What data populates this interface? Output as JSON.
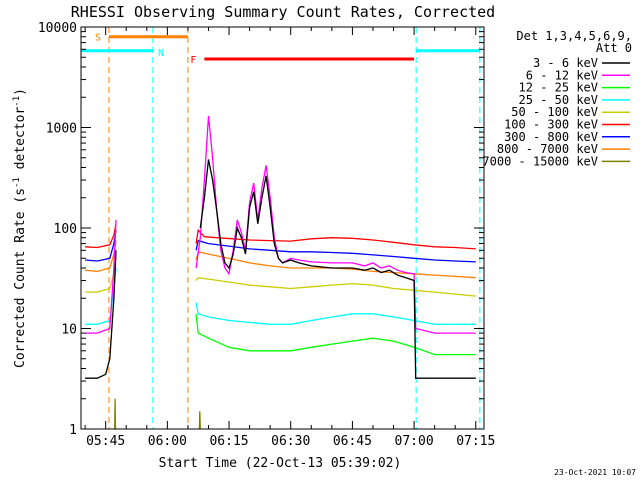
{
  "chart_data": {
    "type": "line",
    "title": "RHESSI Observing Summary Count Rates, Corrected",
    "xlabel": "Start Time (22-Oct-13 05:39:02)",
    "ylabel_main": "Corrected Count Rate (s",
    "ylabel_sup1": "-1",
    "ylabel_mid": " detector",
    "ylabel_sup2": "-1",
    "ylabel_end": ")",
    "yscale": "log",
    "ylim": [
      1,
      10000
    ],
    "xlim_minutes": [
      39.0,
      137.0
    ],
    "x_unit": "minutes after 05:00 UT",
    "x_ticks": [
      {
        "t": 45,
        "label": "05:45"
      },
      {
        "t": 60,
        "label": "06:00"
      },
      {
        "t": 75,
        "label": "06:15"
      },
      {
        "t": 90,
        "label": "06:30"
      },
      {
        "t": 105,
        "label": "06:45"
      },
      {
        "t": 120,
        "label": "07:00"
      },
      {
        "t": 135,
        "label": "07:15"
      }
    ],
    "y_ticks": [
      {
        "v": 1,
        "label": "1"
      },
      {
        "v": 10,
        "label": "10"
      },
      {
        "v": 100,
        "label": "100"
      },
      {
        "v": 1000,
        "label": "1000"
      },
      {
        "v": 10000,
        "label": "10000"
      }
    ],
    "legend": {
      "placement": "right",
      "header1": "Det 1,3,4,5,6,9,",
      "header2": "Att 0",
      "entries": [
        {
          "label": "3 - 6 keV",
          "color": "#000000"
        },
        {
          "label": "6 - 12 keV",
          "color": "#ff00ff"
        },
        {
          "label": "12 - 25 keV",
          "color": "#00ff00"
        },
        {
          "label": "25 - 50 keV",
          "color": "#00ffff"
        },
        {
          "label": "50 - 100 keV",
          "color": "#cccc00"
        },
        {
          "label": "100 - 300 keV",
          "color": "#ff0000"
        },
        {
          "label": "300 - 800 keV",
          "color": "#0000ff"
        },
        {
          "label": "800 - 7000 keV",
          "color": "#ff8000"
        },
        {
          "label": "7000 - 15000 keV",
          "color": "#808000"
        }
      ]
    },
    "flags": [
      {
        "label": "S",
        "color": "#ff8000",
        "start": 45.8,
        "end": 65.0,
        "y": 8000
      },
      {
        "label": "N",
        "color": "#00ffff",
        "start": 39.0,
        "end": 56.5,
        "y": 5800
      },
      {
        "label": "N",
        "color": "#00ffff",
        "start": 120.5,
        "end": 136.0,
        "y": 5800
      },
      {
        "label": "F",
        "color": "#ff0000",
        "start": 69.0,
        "end": 120.0,
        "y": 4800
      }
    ],
    "segment_lines": [
      {
        "t": 39.0,
        "color": "#00ffff"
      },
      {
        "t": 56.5,
        "color": "#00ffff"
      },
      {
        "t": 45.8,
        "color": "#ff8000"
      },
      {
        "t": 65.0,
        "color": "#ff8000"
      },
      {
        "t": 120.5,
        "color": "#00ffff"
      },
      {
        "t": 136.0,
        "color": "#00ffff"
      }
    ],
    "series": [
      {
        "name": "100 - 300 keV",
        "color": "#ff0000",
        "data": [
          [
            40,
            65
          ],
          [
            43,
            64
          ],
          [
            46,
            68
          ],
          [
            47,
            85
          ],
          [
            47.5,
            110
          ],
          [
            67,
            70
          ],
          [
            67.5,
            95
          ],
          [
            69,
            82
          ],
          [
            72,
            80
          ],
          [
            76,
            78
          ],
          [
            80,
            76
          ],
          [
            85,
            75
          ],
          [
            90,
            74
          ],
          [
            95,
            78
          ],
          [
            100,
            80
          ],
          [
            105,
            79
          ],
          [
            110,
            76
          ],
          [
            115,
            72
          ],
          [
            120,
            68
          ],
          [
            125,
            65
          ],
          [
            130,
            64
          ],
          [
            135,
            62
          ]
        ]
      },
      {
        "name": "300 - 800 keV",
        "color": "#0000ff",
        "data": [
          [
            40,
            48
          ],
          [
            43,
            47
          ],
          [
            46,
            50
          ],
          [
            47,
            70
          ],
          [
            47.5,
            95
          ],
          [
            67,
            60
          ],
          [
            67.5,
            75
          ],
          [
            70,
            70
          ],
          [
            75,
            66
          ],
          [
            80,
            62
          ],
          [
            85,
            60
          ],
          [
            90,
            58
          ],
          [
            95,
            58
          ],
          [
            100,
            57
          ],
          [
            105,
            56
          ],
          [
            110,
            54
          ],
          [
            115,
            52
          ],
          [
            120,
            50
          ],
          [
            125,
            48
          ],
          [
            130,
            47
          ],
          [
            135,
            46
          ]
        ]
      },
      {
        "name": "800 - 7000 keV",
        "color": "#ff8000",
        "data": [
          [
            40,
            38
          ],
          [
            43,
            37
          ],
          [
            46,
            40
          ],
          [
            47,
            55
          ],
          [
            47.5,
            75
          ],
          [
            67,
            48
          ],
          [
            67.5,
            58
          ],
          [
            70,
            55
          ],
          [
            75,
            50
          ],
          [
            80,
            45
          ],
          [
            85,
            42
          ],
          [
            90,
            40
          ],
          [
            95,
            40
          ],
          [
            100,
            40
          ],
          [
            105,
            39
          ],
          [
            110,
            37
          ],
          [
            115,
            36
          ],
          [
            120,
            35
          ],
          [
            125,
            34
          ],
          [
            130,
            33
          ],
          [
            135,
            32
          ]
        ]
      },
      {
        "name": "50 - 100 keV",
        "color": "#cccc00",
        "data": [
          [
            40,
            23
          ],
          [
            43,
            23
          ],
          [
            46,
            25
          ],
          [
            47,
            35
          ],
          [
            47.5,
            50
          ],
          [
            67,
            30
          ],
          [
            67.5,
            32
          ],
          [
            70,
            31
          ],
          [
            75,
            29
          ],
          [
            80,
            27
          ],
          [
            85,
            26
          ],
          [
            90,
            25
          ],
          [
            95,
            26
          ],
          [
            100,
            27
          ],
          [
            105,
            28
          ],
          [
            110,
            27
          ],
          [
            115,
            25
          ],
          [
            120,
            24
          ],
          [
            125,
            23
          ],
          [
            130,
            22
          ],
          [
            135,
            21
          ]
        ]
      },
      {
        "name": "25 - 50 keV",
        "color": "#00ffff",
        "data": [
          [
            40,
            11
          ],
          [
            43,
            11
          ],
          [
            46,
            12
          ],
          [
            47,
            25
          ],
          [
            47.5,
            40
          ],
          [
            67,
            18
          ],
          [
            67.5,
            14
          ],
          [
            70,
            13
          ],
          [
            75,
            12
          ],
          [
            80,
            11.5
          ],
          [
            85,
            11
          ],
          [
            90,
            11
          ],
          [
            95,
            12
          ],
          [
            100,
            13
          ],
          [
            105,
            14
          ],
          [
            110,
            14
          ],
          [
            115,
            13
          ],
          [
            120,
            12
          ],
          [
            125,
            11
          ],
          [
            130,
            11
          ],
          [
            135,
            11
          ]
        ]
      },
      {
        "name": "12 - 25 keV",
        "color": "#00ff00",
        "data": [
          [
            67,
            14
          ],
          [
            67.5,
            9
          ],
          [
            70,
            8
          ],
          [
            75,
            6.5
          ],
          [
            80,
            6
          ],
          [
            85,
            6
          ],
          [
            90,
            6
          ],
          [
            95,
            6.5
          ],
          [
            100,
            7
          ],
          [
            105,
            7.5
          ],
          [
            110,
            8
          ],
          [
            115,
            7.5
          ],
          [
            120,
            6.5
          ],
          [
            125,
            5.5
          ],
          [
            130,
            5.5
          ],
          [
            135,
            5.5
          ]
        ]
      },
      {
        "name": "6 - 12 keV",
        "color": "#ff00ff",
        "data": [
          [
            40,
            9
          ],
          [
            43,
            9
          ],
          [
            46,
            10
          ],
          [
            47,
            40
          ],
          [
            47.5,
            120
          ],
          [
            67,
            40
          ],
          [
            68,
            80
          ],
          [
            69,
            300
          ],
          [
            70,
            1300
          ],
          [
            71,
            500
          ],
          [
            72,
            150
          ],
          [
            73,
            60
          ],
          [
            74,
            40
          ],
          [
            75,
            35
          ],
          [
            76,
            60
          ],
          [
            77,
            120
          ],
          [
            78,
            90
          ],
          [
            79,
            60
          ],
          [
            80,
            180
          ],
          [
            81,
            280
          ],
          [
            82,
            120
          ],
          [
            83,
            250
          ],
          [
            84,
            420
          ],
          [
            85,
            200
          ],
          [
            86,
            80
          ],
          [
            87,
            50
          ],
          [
            88,
            45
          ],
          [
            90,
            50
          ],
          [
            92,
            48
          ],
          [
            95,
            46
          ],
          [
            100,
            45
          ],
          [
            105,
            45
          ],
          [
            108,
            42
          ],
          [
            110,
            45
          ],
          [
            112,
            40
          ],
          [
            114,
            42
          ],
          [
            116,
            38
          ],
          [
            118,
            36
          ],
          [
            120,
            35
          ],
          [
            120.4,
            10
          ],
          [
            125,
            9
          ],
          [
            130,
            9
          ],
          [
            135,
            9
          ]
        ]
      },
      {
        "name": "3 - 6 keV",
        "color": "#000000",
        "data": [
          [
            40,
            3.2
          ],
          [
            43,
            3.2
          ],
          [
            45,
            3.5
          ],
          [
            46,
            5
          ],
          [
            47,
            20
          ],
          [
            47.5,
            60
          ],
          [
            68,
            100
          ],
          [
            69,
            200
          ],
          [
            70,
            480
          ],
          [
            71,
            300
          ],
          [
            72,
            150
          ],
          [
            73,
            70
          ],
          [
            74,
            45
          ],
          [
            75,
            40
          ],
          [
            76,
            55
          ],
          [
            77,
            100
          ],
          [
            78,
            80
          ],
          [
            79,
            55
          ],
          [
            80,
            160
          ],
          [
            81,
            230
          ],
          [
            82,
            110
          ],
          [
            83,
            200
          ],
          [
            84,
            330
          ],
          [
            85,
            160
          ],
          [
            86,
            70
          ],
          [
            87,
            50
          ],
          [
            88,
            45
          ],
          [
            90,
            48
          ],
          [
            92,
            45
          ],
          [
            95,
            42
          ],
          [
            100,
            40
          ],
          [
            105,
            40
          ],
          [
            108,
            38
          ],
          [
            110,
            40
          ],
          [
            112,
            36
          ],
          [
            114,
            38
          ],
          [
            116,
            34
          ],
          [
            118,
            32
          ],
          [
            120,
            30
          ],
          [
            120.4,
            3.2
          ],
          [
            125,
            3.2
          ],
          [
            130,
            3.2
          ],
          [
            135,
            3.2
          ]
        ]
      },
      {
        "name": "7000 - 15000 keV",
        "color": "#808000",
        "data": [
          [
            47.2,
            1.0
          ],
          [
            47.3,
            2.0
          ],
          [
            47.4,
            1.0
          ],
          [
            67.8,
            1.0
          ],
          [
            67.9,
            1.5
          ],
          [
            68.0,
            1.0
          ]
        ]
      }
    ]
  },
  "footer": {
    "date_stamp": "23-Oct-2021 10:07"
  }
}
